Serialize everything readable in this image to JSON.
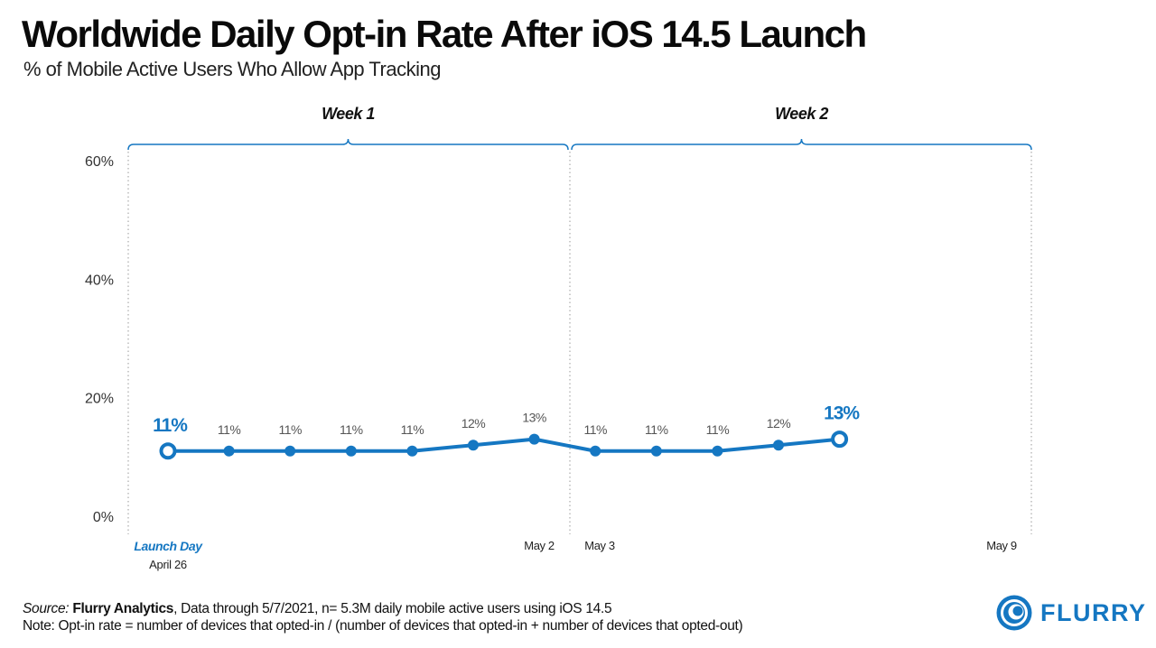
{
  "header": {
    "title": "Worldwide Daily Opt-in Rate After iOS 14.5 Launch",
    "subtitle": "% of Mobile Active Users Who Allow App Tracking"
  },
  "footer": {
    "source_prefix": "Source:",
    "source_name": "Flurry Analytics",
    "source_rest": ", Data through 5/7/2021, n= 5.3M daily mobile active users using iOS 14.5",
    "note": "Note: Opt-in rate = number of devices that opted-in / (number of devices that opted-in + number of devices that opted-out)"
  },
  "logo": {
    "text": "FLURRY"
  },
  "colors": {
    "series": "#1577c2",
    "text": "#111111",
    "muted": "#555555",
    "grid": "#999999"
  },
  "chart_data": {
    "type": "line",
    "title": "Worldwide Daily Opt-in Rate After iOS 14.5 Launch",
    "subtitle": "% of Mobile Active Users Who Allow App Tracking",
    "ylim": [
      0,
      60
    ],
    "yticks": [
      0,
      20,
      40,
      60
    ],
    "ytick_labels": [
      "0%",
      "20%",
      "40%",
      "60%"
    ],
    "x_day_count": 14,
    "x_labels": [
      {
        "day": 1,
        "text": "Launch Day",
        "subtext": "April 26",
        "highlight": true
      },
      {
        "day": 7,
        "text": "May  2"
      },
      {
        "day": 8,
        "text": "May 3"
      },
      {
        "day": 14,
        "text": "May 9"
      }
    ],
    "groups": [
      {
        "label": "Week 1",
        "start_day": 1,
        "end_day": 7
      },
      {
        "label": "Week 2",
        "start_day": 8,
        "end_day": 14
      }
    ],
    "series": [
      {
        "days": [
          1,
          2,
          3,
          4,
          5,
          6,
          7,
          8,
          9,
          10,
          11,
          12
        ],
        "values": [
          11,
          11,
          11,
          11,
          11,
          12,
          13,
          11,
          11,
          11,
          12,
          13
        ],
        "labels": [
          "11%",
          "11%",
          "11%",
          "11%",
          "11%",
          "12%",
          "13%",
          "11%",
          "11%",
          "11%",
          "12%",
          "13%"
        ],
        "emphasized": [
          0,
          11
        ]
      }
    ]
  }
}
